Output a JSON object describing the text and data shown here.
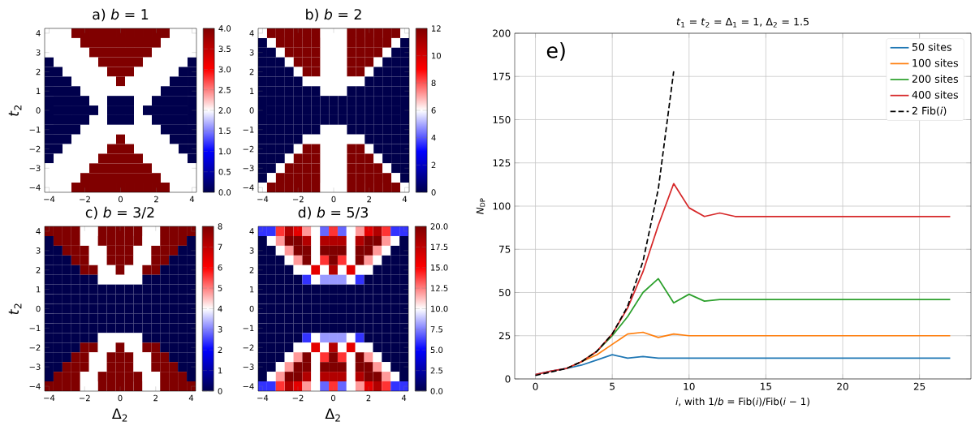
{
  "chart_data": [
    {
      "type": "heatmap",
      "title": "a) *b* = 1",
      "ylabel": "*t*$_{2}$",
      "categories": [
        "−4",
        null,
        null,
        null,
        "−2",
        null,
        null,
        null,
        "0",
        null,
        null,
        null,
        "2",
        null,
        null,
        null,
        "4"
      ],
      "y_categories": [
        "4",
        null,
        "3",
        null,
        "2",
        null,
        "1",
        null,
        "0",
        null,
        "−1",
        null,
        "−2",
        null,
        "−3",
        null,
        "−4"
      ],
      "cells": [
        [
          2,
          2,
          2,
          4,
          4,
          4,
          4,
          4,
          4,
          4,
          4,
          4,
          4,
          4,
          2,
          2,
          2
        ],
        [
          2,
          2,
          2,
          2,
          4,
          4,
          4,
          4,
          4,
          4,
          4,
          4,
          4,
          2,
          2,
          2,
          2
        ],
        [
          2,
          2,
          2,
          2,
          2,
          4,
          4,
          4,
          4,
          4,
          4,
          4,
          2,
          2,
          2,
          2,
          2
        ],
        [
          0,
          2,
          2,
          2,
          2,
          2,
          4,
          4,
          4,
          4,
          4,
          2,
          2,
          2,
          2,
          2,
          0
        ],
        [
          0,
          0,
          2,
          2,
          2,
          2,
          2,
          4,
          4,
          4,
          2,
          2,
          2,
          2,
          2,
          0,
          0
        ],
        [
          0,
          0,
          0,
          2,
          2,
          2,
          2,
          2,
          4,
          2,
          2,
          2,
          2,
          2,
          0,
          0,
          0
        ],
        [
          0,
          0,
          0,
          0,
          2,
          2,
          2,
          2,
          2,
          2,
          2,
          2,
          2,
          0,
          0,
          0,
          0
        ],
        [
          0,
          0,
          0,
          0,
          0,
          2,
          2,
          0,
          0,
          0,
          2,
          2,
          0,
          0,
          0,
          0,
          0
        ],
        [
          0,
          0,
          0,
          0,
          0,
          0,
          2,
          0,
          0,
          0,
          2,
          0,
          0,
          0,
          0,
          0,
          0
        ],
        [
          0,
          0,
          0,
          0,
          0,
          2,
          2,
          0,
          0,
          0,
          2,
          2,
          0,
          0,
          0,
          0,
          0
        ],
        [
          0,
          0,
          0,
          0,
          2,
          2,
          2,
          2,
          2,
          2,
          2,
          2,
          2,
          0,
          0,
          0,
          0
        ],
        [
          0,
          0,
          0,
          2,
          2,
          2,
          2,
          2,
          4,
          2,
          2,
          2,
          2,
          2,
          0,
          0,
          0
        ],
        [
          0,
          0,
          2,
          2,
          2,
          2,
          2,
          4,
          4,
          4,
          2,
          2,
          2,
          2,
          2,
          0,
          0
        ],
        [
          0,
          2,
          2,
          2,
          2,
          2,
          4,
          4,
          4,
          4,
          4,
          2,
          2,
          2,
          2,
          2,
          0
        ],
        [
          2,
          2,
          2,
          2,
          2,
          4,
          4,
          4,
          4,
          4,
          4,
          4,
          2,
          2,
          2,
          2,
          2
        ],
        [
          2,
          2,
          2,
          2,
          4,
          4,
          4,
          4,
          4,
          4,
          4,
          4,
          4,
          2,
          2,
          2,
          2
        ],
        [
          2,
          2,
          2,
          4,
          4,
          4,
          4,
          4,
          4,
          4,
          4,
          4,
          4,
          4,
          2,
          2,
          2
        ]
      ],
      "clim": [
        0,
        4
      ],
      "cticks": [
        {
          "value": 0,
          "label": "0.0"
        },
        {
          "value": 0.5,
          "label": "0.5"
        },
        {
          "value": 1,
          "label": "1.0"
        },
        {
          "value": 1.5,
          "label": "1.5"
        },
        {
          "value": 2,
          "label": "2.0"
        },
        {
          "value": 2.5,
          "label": "2.5"
        },
        {
          "value": 3,
          "label": "3.0"
        },
        {
          "value": 3.5,
          "label": "3.5"
        },
        {
          "value": 4,
          "label": "4.0"
        }
      ]
    },
    {
      "type": "heatmap",
      "title": "b) *b* = 2",
      "categories": [
        "−4",
        null,
        null,
        null,
        "−2",
        null,
        null,
        null,
        "0",
        null,
        null,
        null,
        "2",
        null,
        null,
        null,
        "4"
      ],
      "y_categories": [
        "4",
        null,
        "3",
        null,
        "2",
        null,
        "1",
        null,
        "0",
        null,
        "−1",
        null,
        "−2",
        null,
        "−3",
        null,
        "−4"
      ],
      "cells": [
        [
          6,
          12,
          12,
          12,
          12,
          12,
          12,
          6,
          6,
          6,
          12,
          12,
          12,
          12,
          12,
          12,
          6
        ],
        [
          0,
          6,
          12,
          12,
          12,
          12,
          12,
          6,
          6,
          6,
          12,
          12,
          12,
          12,
          12,
          6,
          0
        ],
        [
          0,
          0,
          6,
          12,
          12,
          12,
          12,
          6,
          6,
          6,
          12,
          12,
          12,
          12,
          6,
          0,
          0
        ],
        [
          0,
          0,
          0,
          6,
          12,
          12,
          12,
          6,
          6,
          6,
          12,
          12,
          12,
          6,
          0,
          0,
          0
        ],
        [
          0,
          0,
          0,
          0,
          6,
          12,
          12,
          6,
          6,
          6,
          12,
          12,
          6,
          0,
          0,
          0,
          0
        ],
        [
          0,
          0,
          0,
          0,
          0,
          6,
          6,
          6,
          6,
          6,
          6,
          6,
          0,
          0,
          0,
          0,
          0
        ],
        [
          0,
          0,
          0,
          0,
          0,
          0,
          0,
          6,
          6,
          6,
          0,
          0,
          0,
          0,
          0,
          0,
          0
        ],
        [
          0,
          0,
          0,
          0,
          0,
          0,
          0,
          0,
          0,
          0,
          0,
          0,
          0,
          0,
          0,
          0,
          0
        ],
        [
          0,
          0,
          0,
          0,
          0,
          0,
          0,
          0,
          0,
          0,
          0,
          0,
          0,
          0,
          0,
          0,
          0
        ],
        [
          0,
          0,
          0,
          0,
          0,
          0,
          0,
          0,
          0,
          0,
          0,
          0,
          0,
          0,
          0,
          0,
          0
        ],
        [
          0,
          0,
          0,
          0,
          0,
          0,
          0,
          6,
          6,
          6,
          0,
          0,
          0,
          0,
          0,
          0,
          0
        ],
        [
          0,
          0,
          0,
          0,
          0,
          6,
          6,
          6,
          6,
          6,
          6,
          6,
          0,
          0,
          0,
          0,
          0
        ],
        [
          0,
          0,
          0,
          0,
          6,
          12,
          12,
          6,
          6,
          6,
          12,
          12,
          6,
          0,
          0,
          0,
          0
        ],
        [
          0,
          0,
          0,
          6,
          12,
          12,
          12,
          6,
          6,
          6,
          12,
          12,
          12,
          6,
          0,
          0,
          0
        ],
        [
          0,
          0,
          6,
          12,
          12,
          12,
          12,
          6,
          6,
          6,
          12,
          12,
          12,
          12,
          6,
          0,
          0
        ],
        [
          0,
          6,
          12,
          12,
          12,
          12,
          12,
          6,
          6,
          6,
          12,
          12,
          12,
          12,
          12,
          6,
          0
        ],
        [
          6,
          12,
          12,
          12,
          12,
          12,
          12,
          6,
          6,
          6,
          12,
          12,
          12,
          12,
          12,
          12,
          6
        ]
      ],
      "clim": [
        0,
        12
      ],
      "cticks": [
        0,
        2,
        4,
        6,
        8,
        10,
        12
      ]
    },
    {
      "type": "heatmap",
      "title": "c) *b* = 3/2",
      "xlabel": "Δ$_{2}$",
      "ylabel": "*t*$_{2}$",
      "categories": [
        "−4",
        null,
        null,
        null,
        "−2",
        null,
        null,
        null,
        "0",
        null,
        null,
        null,
        "2",
        null,
        null,
        null,
        "4"
      ],
      "y_categories": [
        "4",
        null,
        "3",
        null,
        "2",
        null,
        "1",
        null,
        "0",
        null,
        "−1",
        null,
        "−2",
        null,
        "−3",
        null,
        "−4"
      ],
      "cells": [
        [
          8,
          8,
          8,
          8,
          4,
          4,
          8,
          8,
          8,
          8,
          8,
          4,
          4,
          8,
          8,
          8,
          8
        ],
        [
          0,
          8,
          8,
          8,
          4,
          4,
          8,
          8,
          8,
          8,
          8,
          4,
          4,
          8,
          8,
          8,
          0
        ],
        [
          0,
          0,
          8,
          8,
          8,
          4,
          4,
          8,
          8,
          8,
          4,
          4,
          8,
          8,
          8,
          0,
          0
        ],
        [
          0,
          0,
          0,
          8,
          8,
          4,
          4,
          8,
          8,
          8,
          4,
          4,
          8,
          8,
          0,
          0,
          0
        ],
        [
          0,
          0,
          0,
          0,
          8,
          8,
          4,
          4,
          8,
          4,
          4,
          8,
          8,
          0,
          0,
          0,
          0
        ],
        [
          0,
          0,
          0,
          0,
          0,
          0,
          4,
          4,
          4,
          4,
          4,
          0,
          0,
          0,
          0,
          0,
          0
        ],
        [
          0,
          0,
          0,
          0,
          0,
          0,
          0,
          0,
          0,
          0,
          0,
          0,
          0,
          0,
          0,
          0,
          0
        ],
        [
          0,
          0,
          0,
          0,
          0,
          0,
          0,
          0,
          0,
          0,
          0,
          0,
          0,
          0,
          0,
          0,
          0
        ],
        [
          0,
          0,
          0,
          0,
          0,
          0,
          0,
          0,
          0,
          0,
          0,
          0,
          0,
          0,
          0,
          0,
          0
        ],
        [
          0,
          0,
          0,
          0,
          0,
          0,
          0,
          0,
          0,
          0,
          0,
          0,
          0,
          0,
          0,
          0,
          0
        ],
        [
          0,
          0,
          0,
          0,
          0,
          0,
          0,
          0,
          0,
          0,
          0,
          0,
          0,
          0,
          0,
          0,
          0
        ],
        [
          0,
          0,
          0,
          0,
          0,
          0,
          4,
          4,
          4,
          4,
          4,
          0,
          0,
          0,
          0,
          0,
          0
        ],
        [
          0,
          0,
          0,
          0,
          8,
          8,
          4,
          4,
          8,
          4,
          4,
          8,
          8,
          0,
          0,
          0,
          0
        ],
        [
          0,
          0,
          0,
          8,
          8,
          4,
          4,
          8,
          8,
          8,
          4,
          4,
          8,
          8,
          0,
          0,
          0
        ],
        [
          0,
          0,
          8,
          8,
          8,
          4,
          4,
          8,
          8,
          8,
          4,
          4,
          8,
          8,
          8,
          0,
          0
        ],
        [
          0,
          8,
          8,
          8,
          4,
          4,
          8,
          8,
          8,
          8,
          8,
          4,
          4,
          8,
          8,
          8,
          0
        ],
        [
          8,
          8,
          8,
          8,
          4,
          4,
          8,
          8,
          8,
          8,
          8,
          4,
          4,
          8,
          8,
          8,
          8
        ]
      ],
      "clim": [
        0,
        8
      ],
      "cticks": [
        0,
        1,
        2,
        3,
        4,
        5,
        6,
        7,
        8
      ]
    },
    {
      "type": "heatmap",
      "title": "d) *b* = 5/3",
      "xlabel": "Δ$_{2}$",
      "categories": [
        "−4",
        null,
        null,
        null,
        "−2",
        null,
        null,
        null,
        "0",
        null,
        null,
        null,
        "2",
        null,
        null,
        null,
        "4"
      ],
      "y_categories": [
        "4",
        null,
        "3",
        null,
        "2",
        null,
        "1",
        null,
        "0",
        null,
        "−1",
        null,
        "−2",
        null,
        "−3",
        null,
        "−4"
      ],
      "cells": [
        [
          6,
          6,
          14,
          18,
          16,
          12,
          10,
          7,
          14,
          7,
          10,
          12,
          16,
          18,
          14,
          6,
          6
        ],
        [
          0,
          10,
          12,
          20,
          20,
          18,
          10,
          18,
          18,
          18,
          10,
          18,
          20,
          20,
          12,
          10,
          0
        ],
        [
          0,
          0,
          10,
          12,
          20,
          20,
          10,
          20,
          20,
          20,
          10,
          20,
          20,
          12,
          10,
          0,
          0
        ],
        [
          0,
          0,
          0,
          10,
          12,
          20,
          10,
          14,
          20,
          14,
          10,
          20,
          12,
          10,
          0,
          0,
          0
        ],
        [
          0,
          0,
          0,
          0,
          10,
          10,
          16,
          10,
          18,
          10,
          16,
          10,
          10,
          0,
          0,
          0,
          0
        ],
        [
          0,
          0,
          0,
          0,
          0,
          6,
          10,
          8,
          8,
          8,
          10,
          6,
          0,
          0,
          0,
          0,
          0
        ],
        [
          0,
          0,
          0,
          0,
          0,
          0,
          0,
          0,
          0,
          0,
          0,
          0,
          0,
          0,
          0,
          0,
          0
        ],
        [
          0,
          0,
          0,
          0,
          0,
          0,
          0,
          0,
          0,
          0,
          0,
          0,
          0,
          0,
          0,
          0,
          0
        ],
        [
          0,
          0,
          0,
          0,
          0,
          0,
          0,
          0,
          0,
          0,
          0,
          0,
          0,
          0,
          0,
          0,
          0
        ],
        [
          0,
          0,
          0,
          0,
          0,
          0,
          0,
          0,
          0,
          0,
          0,
          0,
          0,
          0,
          0,
          0,
          0
        ],
        [
          0,
          0,
          0,
          0,
          0,
          0,
          0,
          0,
          0,
          0,
          0,
          0,
          0,
          0,
          0,
          0,
          0
        ],
        [
          0,
          0,
          0,
          0,
          0,
          6,
          10,
          8,
          8,
          8,
          10,
          6,
          0,
          0,
          0,
          0,
          0
        ],
        [
          0,
          0,
          0,
          0,
          10,
          10,
          16,
          10,
          18,
          10,
          16,
          10,
          10,
          0,
          0,
          0,
          0
        ],
        [
          0,
          0,
          0,
          10,
          12,
          20,
          10,
          14,
          20,
          14,
          10,
          20,
          12,
          10,
          0,
          0,
          0
        ],
        [
          0,
          0,
          10,
          12,
          20,
          20,
          10,
          20,
          20,
          20,
          10,
          20,
          20,
          12,
          10,
          0,
          0
        ],
        [
          0,
          10,
          12,
          20,
          20,
          18,
          10,
          18,
          18,
          18,
          10,
          18,
          20,
          20,
          12,
          10,
          0
        ],
        [
          6,
          6,
          14,
          18,
          16,
          12,
          10,
          7,
          14,
          7,
          10,
          12,
          16,
          18,
          14,
          6,
          6
        ]
      ],
      "clim": [
        0,
        20
      ],
      "cticks": [
        {
          "value": 0,
          "label": "0.0"
        },
        {
          "value": 2.5,
          "label": "2.5"
        },
        {
          "value": 5,
          "label": "5.0"
        },
        {
          "value": 7.5,
          "label": "7.5"
        },
        {
          "value": 10,
          "label": "10.0"
        },
        {
          "value": 12.5,
          "label": "12.5"
        },
        {
          "value": 15,
          "label": "15.0"
        },
        {
          "value": 17.5,
          "label": "17.5"
        },
        {
          "value": 20,
          "label": "20.0"
        }
      ]
    },
    {
      "type": "line",
      "title": "*t*$_{1}$ = *t*$_{2}$ = Δ$_{1}$ = 1, Δ$_{2}$ = 1.5",
      "xlabel": "*i*, with 1/*b* = Fib(*i*)/Fib(*i* − 1)",
      "ylabel": "*N*$_{DP}$",
      "annotations": [
        "e)"
      ],
      "x": [
        0,
        1,
        2,
        3,
        4,
        5,
        6,
        7,
        8,
        9,
        10,
        11,
        12,
        13,
        14,
        15,
        16,
        17,
        18,
        19,
        20,
        21,
        22,
        23,
        24,
        25,
        26,
        27
      ],
      "series": [
        {
          "name": "50 sites",
          "color": "#1f77b4",
          "values": [
            2.5,
            4.5,
            6,
            8,
            11,
            14,
            12,
            13,
            12,
            12,
            12,
            12,
            12,
            12,
            12,
            12,
            12,
            12,
            12,
            12,
            12,
            12,
            12,
            12,
            12,
            12,
            12,
            12
          ]
        },
        {
          "name": "100 sites",
          "color": "#ff7f0e",
          "values": [
            null,
            null,
            6,
            10,
            14,
            20,
            26,
            27,
            24,
            26,
            25,
            25,
            25,
            25,
            25,
            25,
            25,
            25,
            25,
            25,
            25,
            25,
            25,
            25,
            25,
            25,
            25,
            25
          ]
        },
        {
          "name": "200 sites",
          "color": "#2ca02c",
          "values": [
            null,
            null,
            null,
            10,
            16,
            25,
            36,
            50,
            58,
            44,
            49,
            45,
            46,
            46,
            46,
            46,
            46,
            46,
            46,
            46,
            46,
            46,
            46,
            46,
            46,
            46,
            46,
            46
          ]
        },
        {
          "name": "400 sites",
          "color": "#d62728",
          "values": [
            2.5,
            4.5,
            6,
            10,
            16,
            26,
            41,
            62,
            89,
            113,
            99,
            94,
            96,
            94,
            94,
            94,
            94,
            94,
            94,
            94,
            94,
            94,
            94,
            94,
            94,
            94,
            94,
            94
          ]
        },
        {
          "name": "2 Fib(*i*)",
          "color": "#000000",
          "line_style": "dashed",
          "x": [
            0,
            1,
            2,
            3,
            4,
            5,
            6,
            7,
            8,
            9
          ],
          "values": [
            2,
            4,
            6,
            10,
            16,
            26,
            42,
            68,
            110,
            178
          ]
        }
      ],
      "xlim": [
        -1.35,
        28.35
      ],
      "ylim": [
        0,
        200
      ],
      "xticks": [
        0,
        5,
        10,
        15,
        20,
        25
      ],
      "yticks": [
        0,
        25,
        50,
        75,
        100,
        125,
        150,
        175,
        200
      ],
      "grid": true,
      "legend": "top right",
      "marker": "none"
    }
  ]
}
